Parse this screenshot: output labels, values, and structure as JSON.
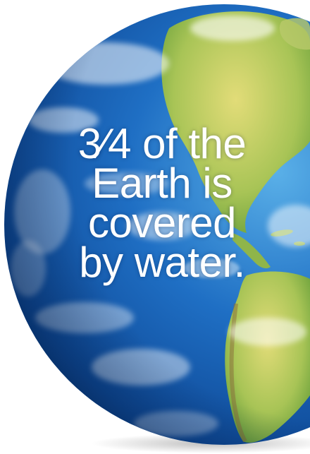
{
  "caption": {
    "fraction": "3⁄4",
    "line1_rest": " of the",
    "line2": "Earth is",
    "line3": "covered",
    "line4": "by water."
  },
  "colors": {
    "ocean_deep": "#0b3a7a",
    "ocean": "#1f6fc4",
    "ocean_light": "#5ab0e8",
    "land_green": "#6fa83a",
    "land_yellow": "#d8d46a",
    "cloud": "#ffffff",
    "background": "#ffffff"
  }
}
